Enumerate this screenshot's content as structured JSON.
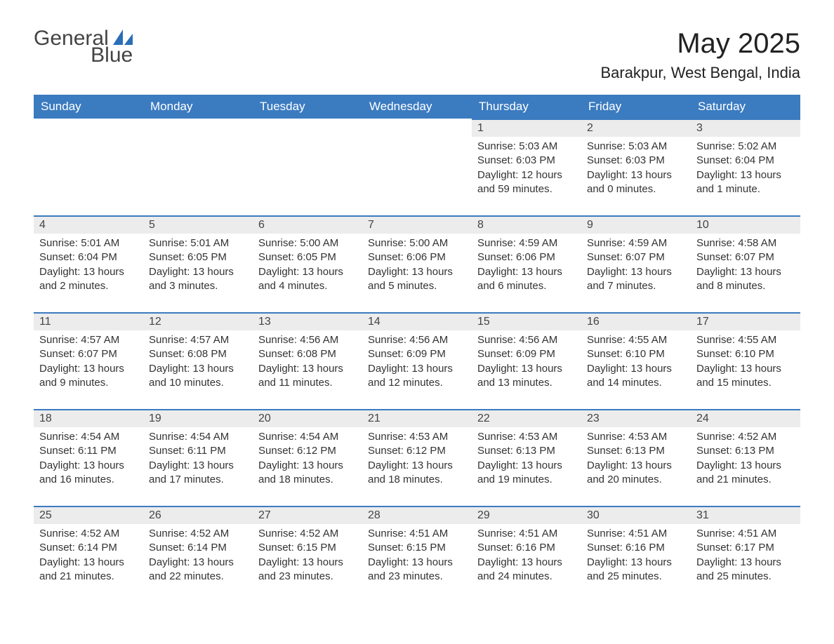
{
  "logo": {
    "line1": "General",
    "line2": "Blue"
  },
  "title": "May 2025",
  "subtitle": "Barakpur, West Bengal, India",
  "colors": {
    "header_bg": "#3b7bc0",
    "header_text": "#ffffff",
    "daynum_bg": "#ececec",
    "row_border": "#3b7bc0",
    "logo_blue": "#2a6db8",
    "text": "#333333",
    "background": "#ffffff"
  },
  "fontsize": {
    "title": 40,
    "subtitle": 22,
    "th": 17,
    "daynum": 16,
    "body": 15
  },
  "weekdays": [
    "Sunday",
    "Monday",
    "Tuesday",
    "Wednesday",
    "Thursday",
    "Friday",
    "Saturday"
  ],
  "first_weekday_index": 4,
  "days": [
    {
      "n": 1,
      "sunrise": "5:03 AM",
      "sunset": "6:03 PM",
      "daylight": "12 hours and 59 minutes."
    },
    {
      "n": 2,
      "sunrise": "5:03 AM",
      "sunset": "6:03 PM",
      "daylight": "13 hours and 0 minutes."
    },
    {
      "n": 3,
      "sunrise": "5:02 AM",
      "sunset": "6:04 PM",
      "daylight": "13 hours and 1 minute."
    },
    {
      "n": 4,
      "sunrise": "5:01 AM",
      "sunset": "6:04 PM",
      "daylight": "13 hours and 2 minutes."
    },
    {
      "n": 5,
      "sunrise": "5:01 AM",
      "sunset": "6:05 PM",
      "daylight": "13 hours and 3 minutes."
    },
    {
      "n": 6,
      "sunrise": "5:00 AM",
      "sunset": "6:05 PM",
      "daylight": "13 hours and 4 minutes."
    },
    {
      "n": 7,
      "sunrise": "5:00 AM",
      "sunset": "6:06 PM",
      "daylight": "13 hours and 5 minutes."
    },
    {
      "n": 8,
      "sunrise": "4:59 AM",
      "sunset": "6:06 PM",
      "daylight": "13 hours and 6 minutes."
    },
    {
      "n": 9,
      "sunrise": "4:59 AM",
      "sunset": "6:07 PM",
      "daylight": "13 hours and 7 minutes."
    },
    {
      "n": 10,
      "sunrise": "4:58 AM",
      "sunset": "6:07 PM",
      "daylight": "13 hours and 8 minutes."
    },
    {
      "n": 11,
      "sunrise": "4:57 AM",
      "sunset": "6:07 PM",
      "daylight": "13 hours and 9 minutes."
    },
    {
      "n": 12,
      "sunrise": "4:57 AM",
      "sunset": "6:08 PM",
      "daylight": "13 hours and 10 minutes."
    },
    {
      "n": 13,
      "sunrise": "4:56 AM",
      "sunset": "6:08 PM",
      "daylight": "13 hours and 11 minutes."
    },
    {
      "n": 14,
      "sunrise": "4:56 AM",
      "sunset": "6:09 PM",
      "daylight": "13 hours and 12 minutes."
    },
    {
      "n": 15,
      "sunrise": "4:56 AM",
      "sunset": "6:09 PM",
      "daylight": "13 hours and 13 minutes."
    },
    {
      "n": 16,
      "sunrise": "4:55 AM",
      "sunset": "6:10 PM",
      "daylight": "13 hours and 14 minutes."
    },
    {
      "n": 17,
      "sunrise": "4:55 AM",
      "sunset": "6:10 PM",
      "daylight": "13 hours and 15 minutes."
    },
    {
      "n": 18,
      "sunrise": "4:54 AM",
      "sunset": "6:11 PM",
      "daylight": "13 hours and 16 minutes."
    },
    {
      "n": 19,
      "sunrise": "4:54 AM",
      "sunset": "6:11 PM",
      "daylight": "13 hours and 17 minutes."
    },
    {
      "n": 20,
      "sunrise": "4:54 AM",
      "sunset": "6:12 PM",
      "daylight": "13 hours and 18 minutes."
    },
    {
      "n": 21,
      "sunrise": "4:53 AM",
      "sunset": "6:12 PM",
      "daylight": "13 hours and 18 minutes."
    },
    {
      "n": 22,
      "sunrise": "4:53 AM",
      "sunset": "6:13 PM",
      "daylight": "13 hours and 19 minutes."
    },
    {
      "n": 23,
      "sunrise": "4:53 AM",
      "sunset": "6:13 PM",
      "daylight": "13 hours and 20 minutes."
    },
    {
      "n": 24,
      "sunrise": "4:52 AM",
      "sunset": "6:13 PM",
      "daylight": "13 hours and 21 minutes."
    },
    {
      "n": 25,
      "sunrise": "4:52 AM",
      "sunset": "6:14 PM",
      "daylight": "13 hours and 21 minutes."
    },
    {
      "n": 26,
      "sunrise": "4:52 AM",
      "sunset": "6:14 PM",
      "daylight": "13 hours and 22 minutes."
    },
    {
      "n": 27,
      "sunrise": "4:52 AM",
      "sunset": "6:15 PM",
      "daylight": "13 hours and 23 minutes."
    },
    {
      "n": 28,
      "sunrise": "4:51 AM",
      "sunset": "6:15 PM",
      "daylight": "13 hours and 23 minutes."
    },
    {
      "n": 29,
      "sunrise": "4:51 AM",
      "sunset": "6:16 PM",
      "daylight": "13 hours and 24 minutes."
    },
    {
      "n": 30,
      "sunrise": "4:51 AM",
      "sunset": "6:16 PM",
      "daylight": "13 hours and 25 minutes."
    },
    {
      "n": 31,
      "sunrise": "4:51 AM",
      "sunset": "6:17 PM",
      "daylight": "13 hours and 25 minutes."
    }
  ],
  "labels": {
    "sunrise": "Sunrise:",
    "sunset": "Sunset:",
    "daylight": "Daylight:"
  }
}
